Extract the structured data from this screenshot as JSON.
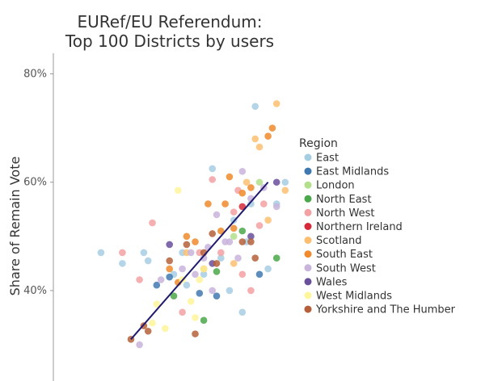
{
  "chart_data": {
    "type": "scatter",
    "title": [
      "EURef/EU Referendum:",
      "Top 100 Districts by users"
    ],
    "ylabel": "Share of Remain Vote",
    "xlabel": "",
    "yticks": [
      {
        "value": 0.8,
        "label": "80%"
      },
      {
        "value": 0.6,
        "label": "60%"
      },
      {
        "value": 0.4,
        "label": "40%"
      }
    ],
    "ylim": [
      0.233,
      0.847
    ],
    "xlim": [
      0,
      100
    ],
    "grid": false,
    "legend": {
      "title": "Region",
      "position": "right"
    },
    "trendline": {
      "color": "#1f1a6e",
      "from": {
        "x": 10,
        "y": 0.31
      },
      "to": {
        "x": 42,
        "y": 0.6
      }
    },
    "series": [
      {
        "name": "East",
        "color": "#a6cee3",
        "points": [
          {
            "x": 3,
            "y": 0.47
          },
          {
            "x": 8,
            "y": 0.45
          },
          {
            "x": 13,
            "y": 0.47
          },
          {
            "x": 14,
            "y": 0.455
          },
          {
            "x": 20,
            "y": 0.43
          },
          {
            "x": 22,
            "y": 0.47
          },
          {
            "x": 23,
            "y": 0.41
          },
          {
            "x": 27,
            "y": 0.43
          },
          {
            "x": 29,
            "y": 0.625
          },
          {
            "x": 31,
            "y": 0.46
          },
          {
            "x": 33,
            "y": 0.4
          },
          {
            "x": 34,
            "y": 0.53
          },
          {
            "x": 36,
            "y": 0.36
          },
          {
            "x": 37,
            "y": 0.49
          },
          {
            "x": 38,
            "y": 0.56
          },
          {
            "x": 39,
            "y": 0.74
          },
          {
            "x": 42,
            "y": 0.44
          },
          {
            "x": 44,
            "y": 0.56
          },
          {
            "x": 46,
            "y": 0.6
          }
        ]
      },
      {
        "name": "East Midlands",
        "color": "#3f79b0",
        "points": [
          {
            "x": 16,
            "y": 0.41
          },
          {
            "x": 19,
            "y": 0.425
          },
          {
            "x": 26,
            "y": 0.395
          },
          {
            "x": 30,
            "y": 0.39
          },
          {
            "x": 40,
            "y": 0.43
          }
        ]
      },
      {
        "name": "London",
        "color": "#b2df8a",
        "points": [
          {
            "x": 34,
            "y": 0.5
          },
          {
            "x": 40,
            "y": 0.6
          }
        ]
      },
      {
        "name": "North East",
        "color": "#4aa84a",
        "points": [
          {
            "x": 20,
            "y": 0.39
          },
          {
            "x": 27,
            "y": 0.345
          },
          {
            "x": 30,
            "y": 0.435
          },
          {
            "x": 36,
            "y": 0.51
          },
          {
            "x": 44,
            "y": 0.46
          }
        ]
      },
      {
        "name": "North West",
        "color": "#f4a1a3",
        "points": [
          {
            "x": 8,
            "y": 0.47
          },
          {
            "x": 12,
            "y": 0.42
          },
          {
            "x": 15,
            "y": 0.525
          },
          {
            "x": 22,
            "y": 0.36
          },
          {
            "x": 26,
            "y": 0.47
          },
          {
            "x": 29,
            "y": 0.605
          },
          {
            "x": 31,
            "y": 0.47
          },
          {
            "x": 34,
            "y": 0.545
          },
          {
            "x": 35,
            "y": 0.585
          },
          {
            "x": 36,
            "y": 0.43
          },
          {
            "x": 38,
            "y": 0.4
          },
          {
            "x": 40,
            "y": 0.52
          },
          {
            "x": 41,
            "y": 0.56
          }
        ]
      },
      {
        "name": "Northern Ireland",
        "color": "#d62a3a",
        "points": [
          {
            "x": 36,
            "y": 0.555
          }
        ]
      },
      {
        "name": "Scotland",
        "color": "#fdbf6f",
        "points": [
          {
            "x": 23,
            "y": 0.47
          },
          {
            "x": 34,
            "y": 0.45
          },
          {
            "x": 37,
            "y": 0.6
          },
          {
            "x": 39,
            "y": 0.68
          },
          {
            "x": 40,
            "y": 0.665
          },
          {
            "x": 42,
            "y": 0.53
          },
          {
            "x": 44,
            "y": 0.745
          },
          {
            "x": 46,
            "y": 0.585
          }
        ]
      },
      {
        "name": "South East",
        "color": "#f08a2a",
        "points": [
          {
            "x": 19,
            "y": 0.44
          },
          {
            "x": 21,
            "y": 0.415
          },
          {
            "x": 23,
            "y": 0.5
          },
          {
            "x": 25,
            "y": 0.49
          },
          {
            "x": 27,
            "y": 0.44
          },
          {
            "x": 28,
            "y": 0.56
          },
          {
            "x": 31,
            "y": 0.51
          },
          {
            "x": 32,
            "y": 0.56
          },
          {
            "x": 33,
            "y": 0.61
          },
          {
            "x": 34,
            "y": 0.515
          },
          {
            "x": 36,
            "y": 0.58
          },
          {
            "x": 38,
            "y": 0.59
          },
          {
            "x": 42,
            "y": 0.685
          },
          {
            "x": 43,
            "y": 0.7
          }
        ]
      },
      {
        "name": "South West",
        "color": "#c9b4dc",
        "points": [
          {
            "x": 12,
            "y": 0.3
          },
          {
            "x": 17,
            "y": 0.42
          },
          {
            "x": 22,
            "y": 0.44
          },
          {
            "x": 24,
            "y": 0.47
          },
          {
            "x": 25,
            "y": 0.43
          },
          {
            "x": 27,
            "y": 0.46
          },
          {
            "x": 28,
            "y": 0.48
          },
          {
            "x": 29,
            "y": 0.4
          },
          {
            "x": 30,
            "y": 0.54
          },
          {
            "x": 32,
            "y": 0.49
          },
          {
            "x": 33,
            "y": 0.49
          },
          {
            "x": 35,
            "y": 0.46
          },
          {
            "x": 36,
            "y": 0.62
          },
          {
            "x": 38,
            "y": 0.57
          },
          {
            "x": 41,
            "y": 0.59
          },
          {
            "x": 44,
            "y": 0.555
          }
        ]
      },
      {
        "name": "Wales",
        "color": "#6a4f9b",
        "points": [
          {
            "x": 19,
            "y": 0.485
          },
          {
            "x": 29,
            "y": 0.45
          },
          {
            "x": 38,
            "y": 0.5
          },
          {
            "x": 44,
            "y": 0.6
          }
        ]
      },
      {
        "name": "West Midlands",
        "color": "#fff59a",
        "points": [
          {
            "x": 15,
            "y": 0.34
          },
          {
            "x": 16,
            "y": 0.375
          },
          {
            "x": 18,
            "y": 0.33
          },
          {
            "x": 21,
            "y": 0.585
          },
          {
            "x": 22,
            "y": 0.42
          },
          {
            "x": 24,
            "y": 0.38
          },
          {
            "x": 25,
            "y": 0.35
          },
          {
            "x": 26,
            "y": 0.42
          },
          {
            "x": 27,
            "y": 0.44
          }
        ]
      },
      {
        "name": "Yorkshire and The Humber",
        "color": "#b5603a",
        "points": [
          {
            "x": 10,
            "y": 0.31
          },
          {
            "x": 13,
            "y": 0.335
          },
          {
            "x": 14,
            "y": 0.325
          },
          {
            "x": 19,
            "y": 0.455
          },
          {
            "x": 23,
            "y": 0.485
          },
          {
            "x": 25,
            "y": 0.32
          },
          {
            "x": 27,
            "y": 0.47
          },
          {
            "x": 29,
            "y": 0.505
          },
          {
            "x": 30,
            "y": 0.45
          },
          {
            "x": 36,
            "y": 0.49
          },
          {
            "x": 38,
            "y": 0.49
          },
          {
            "x": 39,
            "y": 0.46
          }
        ]
      }
    ]
  }
}
